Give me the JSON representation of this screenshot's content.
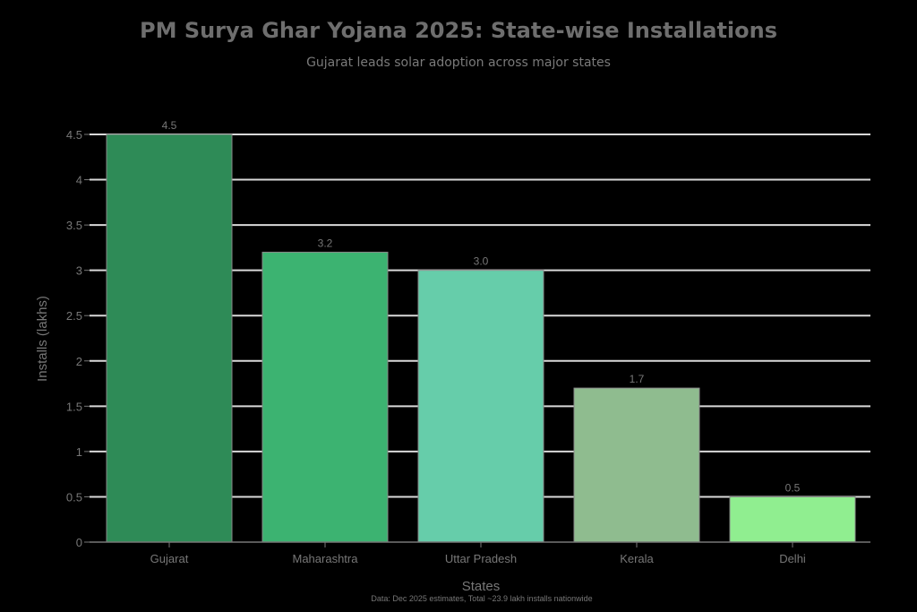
{
  "chart_data": {
    "type": "bar",
    "title": "PM Surya Ghar Yojana 2025: State-wise Installations",
    "subtitle": "Gujarat leads solar adoption across major states",
    "xlabel": "States",
    "ylabel": "Installs (lakhs)",
    "categories": [
      "Gujarat",
      "Maharashtra",
      "Uttar Pradesh",
      "Kerala",
      "Delhi"
    ],
    "values": [
      4.5,
      3.2,
      3.0,
      1.7,
      0.5
    ],
    "value_labels": [
      "4.5",
      "3.2",
      "3.0",
      "1.7",
      "0.5"
    ],
    "colors": [
      "#2e8b57",
      "#3cb371",
      "#66cdaa",
      "#8fbc8f",
      "#90ee90"
    ],
    "ylim": [
      0,
      4.5
    ],
    "yticks": [
      0,
      0.5,
      1,
      1.5,
      2,
      2.5,
      3,
      3.5,
      4,
      4.5
    ],
    "ytick_labels": [
      "0",
      "0.5",
      "1",
      "1.5",
      "2",
      "2.5",
      "3",
      "3.5",
      "4",
      "4.5"
    ],
    "grid": true,
    "legend": false,
    "annotation": "Data: Dec 2025 estimates, Total ~23.9 lakh installs nationwide"
  }
}
